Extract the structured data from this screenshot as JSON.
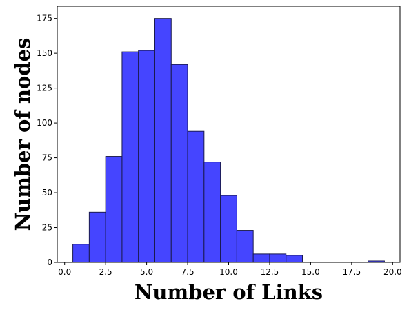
{
  "chart_data": {
    "type": "bar",
    "xlabel": "Number of Links",
    "ylabel": "Number of nodes",
    "xlim": [
      -0.45,
      20.45
    ],
    "ylim": [
      0,
      183.75
    ],
    "bin_width": 1,
    "bins": [
      {
        "x": 1,
        "value": 13
      },
      {
        "x": 2,
        "value": 36
      },
      {
        "x": 3,
        "value": 76
      },
      {
        "x": 4,
        "value": 151
      },
      {
        "x": 5,
        "value": 152
      },
      {
        "x": 6,
        "value": 175
      },
      {
        "x": 7,
        "value": 142
      },
      {
        "x": 8,
        "value": 94
      },
      {
        "x": 9,
        "value": 72
      },
      {
        "x": 10,
        "value": 48
      },
      {
        "x": 11,
        "value": 23
      },
      {
        "x": 12,
        "value": 6
      },
      {
        "x": 13,
        "value": 6
      },
      {
        "x": 14,
        "value": 5
      },
      {
        "x": 15,
        "value": 0
      },
      {
        "x": 16,
        "value": 0
      },
      {
        "x": 17,
        "value": 0
      },
      {
        "x": 18,
        "value": 0
      },
      {
        "x": 19,
        "value": 1
      }
    ],
    "x_ticks": [
      "0.0",
      "2.5",
      "5.0",
      "7.5",
      "10.0",
      "12.5",
      "15.0",
      "17.5",
      "20.0"
    ],
    "y_ticks": [
      "0",
      "25",
      "50",
      "75",
      "100",
      "125",
      "150",
      "175"
    ],
    "bar_color": "#4545ff",
    "bar_edge_color": "#1a1a4d",
    "grid": false,
    "legend": "none"
  }
}
